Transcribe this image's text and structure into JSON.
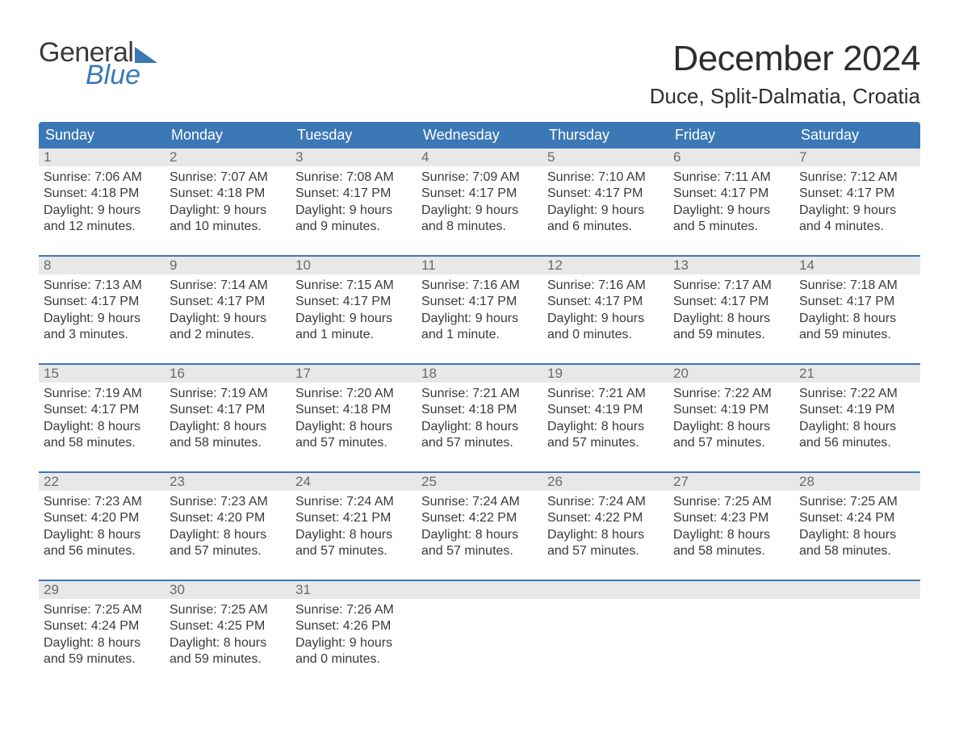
{
  "logo": {
    "word1": "General",
    "word2": "Blue"
  },
  "title": "December 2024",
  "location": "Duce, Split-Dalmatia, Croatia",
  "colors": {
    "brand_blue": "#3b78b5",
    "header_text": "#ffffff",
    "daynum_bg": "#e8e8e8",
    "daynum_text": "#6a6a6a",
    "body_text": "#3a3a3a",
    "background": "#ffffff"
  },
  "typography": {
    "title_fontsize": 44,
    "location_fontsize": 26,
    "dayheader_fontsize": 18,
    "body_fontsize": 16
  },
  "day_labels": [
    "Sunday",
    "Monday",
    "Tuesday",
    "Wednesday",
    "Thursday",
    "Friday",
    "Saturday"
  ],
  "weeks": [
    [
      {
        "n": "1",
        "sunrise": "7:06 AM",
        "sunset": "4:18 PM",
        "dl1": "Daylight: 9 hours",
        "dl2": "and 12 minutes."
      },
      {
        "n": "2",
        "sunrise": "7:07 AM",
        "sunset": "4:18 PM",
        "dl1": "Daylight: 9 hours",
        "dl2": "and 10 minutes."
      },
      {
        "n": "3",
        "sunrise": "7:08 AM",
        "sunset": "4:17 PM",
        "dl1": "Daylight: 9 hours",
        "dl2": "and 9 minutes."
      },
      {
        "n": "4",
        "sunrise": "7:09 AM",
        "sunset": "4:17 PM",
        "dl1": "Daylight: 9 hours",
        "dl2": "and 8 minutes."
      },
      {
        "n": "5",
        "sunrise": "7:10 AM",
        "sunset": "4:17 PM",
        "dl1": "Daylight: 9 hours",
        "dl2": "and 6 minutes."
      },
      {
        "n": "6",
        "sunrise": "7:11 AM",
        "sunset": "4:17 PM",
        "dl1": "Daylight: 9 hours",
        "dl2": "and 5 minutes."
      },
      {
        "n": "7",
        "sunrise": "7:12 AM",
        "sunset": "4:17 PM",
        "dl1": "Daylight: 9 hours",
        "dl2": "and 4 minutes."
      }
    ],
    [
      {
        "n": "8",
        "sunrise": "7:13 AM",
        "sunset": "4:17 PM",
        "dl1": "Daylight: 9 hours",
        "dl2": "and 3 minutes."
      },
      {
        "n": "9",
        "sunrise": "7:14 AM",
        "sunset": "4:17 PM",
        "dl1": "Daylight: 9 hours",
        "dl2": "and 2 minutes."
      },
      {
        "n": "10",
        "sunrise": "7:15 AM",
        "sunset": "4:17 PM",
        "dl1": "Daylight: 9 hours",
        "dl2": "and 1 minute."
      },
      {
        "n": "11",
        "sunrise": "7:16 AM",
        "sunset": "4:17 PM",
        "dl1": "Daylight: 9 hours",
        "dl2": "and 1 minute."
      },
      {
        "n": "12",
        "sunrise": "7:16 AM",
        "sunset": "4:17 PM",
        "dl1": "Daylight: 9 hours",
        "dl2": "and 0 minutes."
      },
      {
        "n": "13",
        "sunrise": "7:17 AM",
        "sunset": "4:17 PM",
        "dl1": "Daylight: 8 hours",
        "dl2": "and 59 minutes."
      },
      {
        "n": "14",
        "sunrise": "7:18 AM",
        "sunset": "4:17 PM",
        "dl1": "Daylight: 8 hours",
        "dl2": "and 59 minutes."
      }
    ],
    [
      {
        "n": "15",
        "sunrise": "7:19 AM",
        "sunset": "4:17 PM",
        "dl1": "Daylight: 8 hours",
        "dl2": "and 58 minutes."
      },
      {
        "n": "16",
        "sunrise": "7:19 AM",
        "sunset": "4:17 PM",
        "dl1": "Daylight: 8 hours",
        "dl2": "and 58 minutes."
      },
      {
        "n": "17",
        "sunrise": "7:20 AM",
        "sunset": "4:18 PM",
        "dl1": "Daylight: 8 hours",
        "dl2": "and 57 minutes."
      },
      {
        "n": "18",
        "sunrise": "7:21 AM",
        "sunset": "4:18 PM",
        "dl1": "Daylight: 8 hours",
        "dl2": "and 57 minutes."
      },
      {
        "n": "19",
        "sunrise": "7:21 AM",
        "sunset": "4:19 PM",
        "dl1": "Daylight: 8 hours",
        "dl2": "and 57 minutes."
      },
      {
        "n": "20",
        "sunrise": "7:22 AM",
        "sunset": "4:19 PM",
        "dl1": "Daylight: 8 hours",
        "dl2": "and 57 minutes."
      },
      {
        "n": "21",
        "sunrise": "7:22 AM",
        "sunset": "4:19 PM",
        "dl1": "Daylight: 8 hours",
        "dl2": "and 56 minutes."
      }
    ],
    [
      {
        "n": "22",
        "sunrise": "7:23 AM",
        "sunset": "4:20 PM",
        "dl1": "Daylight: 8 hours",
        "dl2": "and 56 minutes."
      },
      {
        "n": "23",
        "sunrise": "7:23 AM",
        "sunset": "4:20 PM",
        "dl1": "Daylight: 8 hours",
        "dl2": "and 57 minutes."
      },
      {
        "n": "24",
        "sunrise": "7:24 AM",
        "sunset": "4:21 PM",
        "dl1": "Daylight: 8 hours",
        "dl2": "and 57 minutes."
      },
      {
        "n": "25",
        "sunrise": "7:24 AM",
        "sunset": "4:22 PM",
        "dl1": "Daylight: 8 hours",
        "dl2": "and 57 minutes."
      },
      {
        "n": "26",
        "sunrise": "7:24 AM",
        "sunset": "4:22 PM",
        "dl1": "Daylight: 8 hours",
        "dl2": "and 57 minutes."
      },
      {
        "n": "27",
        "sunrise": "7:25 AM",
        "sunset": "4:23 PM",
        "dl1": "Daylight: 8 hours",
        "dl2": "and 58 minutes."
      },
      {
        "n": "28",
        "sunrise": "7:25 AM",
        "sunset": "4:24 PM",
        "dl1": "Daylight: 8 hours",
        "dl2": "and 58 minutes."
      }
    ],
    [
      {
        "n": "29",
        "sunrise": "7:25 AM",
        "sunset": "4:24 PM",
        "dl1": "Daylight: 8 hours",
        "dl2": "and 59 minutes."
      },
      {
        "n": "30",
        "sunrise": "7:25 AM",
        "sunset": "4:25 PM",
        "dl1": "Daylight: 8 hours",
        "dl2": "and 59 minutes."
      },
      {
        "n": "31",
        "sunrise": "7:26 AM",
        "sunset": "4:26 PM",
        "dl1": "Daylight: 9 hours",
        "dl2": "and 0 minutes."
      },
      {
        "empty": true
      },
      {
        "empty": true
      },
      {
        "empty": true
      },
      {
        "empty": true
      }
    ]
  ]
}
